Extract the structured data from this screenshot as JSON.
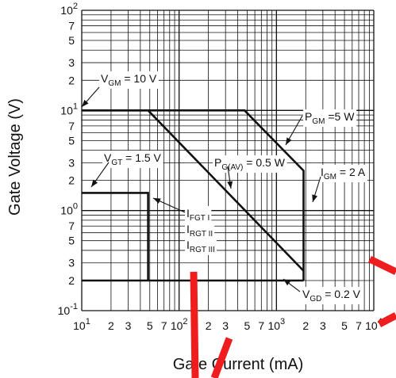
{
  "chart_data": {
    "type": "line",
    "x_scale": "log",
    "y_scale": "log",
    "xlim": [
      10,
      10000
    ],
    "ylim": [
      0.1,
      100
    ],
    "grid": true,
    "xlabel": "Gate Current  (mA)",
    "ylabel": "Gate Voltage  (V)",
    "x_tick_labels": [
      {
        "v": 10,
        "base": "10",
        "exp": "1"
      },
      {
        "v": 20,
        "base": "2"
      },
      {
        "v": 30,
        "base": "3"
      },
      {
        "v": 50,
        "base": "5"
      },
      {
        "v": 70,
        "base": "7"
      },
      {
        "v": 100,
        "base": "10",
        "exp": "2"
      },
      {
        "v": 200,
        "base": "2"
      },
      {
        "v": 300,
        "base": "3"
      },
      {
        "v": 500,
        "base": "5"
      },
      {
        "v": 700,
        "base": "7"
      },
      {
        "v": 1000,
        "base": "10",
        "exp": "3"
      },
      {
        "v": 2000,
        "base": "2"
      },
      {
        "v": 3000,
        "base": "3"
      },
      {
        "v": 5000,
        "base": "5"
      },
      {
        "v": 7000,
        "base": "7"
      },
      {
        "v": 10000,
        "base": "10",
        "exp": "4"
      }
    ],
    "y_tick_labels": [
      {
        "v": 100,
        "base": "10",
        "exp": "2"
      },
      {
        "v": 70,
        "base": "7"
      },
      {
        "v": 50,
        "base": "5"
      },
      {
        "v": 30,
        "base": "3"
      },
      {
        "v": 20,
        "base": "2"
      },
      {
        "v": 10,
        "base": "10",
        "exp": "1"
      },
      {
        "v": 7,
        "base": "7"
      },
      {
        "v": 5,
        "base": "5"
      },
      {
        "v": 3,
        "base": "3"
      },
      {
        "v": 2,
        "base": "2"
      },
      {
        "v": 1,
        "base": "10",
        "exp": "0"
      },
      {
        "v": 0.7,
        "base": "7"
      },
      {
        "v": 0.5,
        "base": "5"
      },
      {
        "v": 0.3,
        "base": "3"
      },
      {
        "v": 0.2,
        "base": "2"
      },
      {
        "v": 0.1,
        "base": "10",
        "exp": "-1"
      }
    ],
    "series": [
      {
        "points": [
          [
            10,
            10
          ],
          [
            48,
            10
          ],
          [
            1900,
            0.25
          ]
        ]
      },
      {
        "points": [
          [
            10,
            10
          ],
          [
            470,
            10
          ],
          [
            1900,
            2.5
          ],
          [
            1900,
            0.2
          ]
        ]
      },
      {
        "points": [
          [
            10,
            1.5
          ],
          [
            48,
            1.5
          ],
          [
            48,
            0.2
          ]
        ]
      },
      {
        "points": [
          [
            10,
            0.2
          ],
          [
            1900,
            0.2
          ]
        ]
      }
    ],
    "annotations": [
      {
        "id": "vgm",
        "main": "V",
        "sub": "GM",
        "tail": " = 10 V",
        "leader": [
          [
            125,
            110
          ],
          [
            103,
            135
          ]
        ]
      },
      {
        "id": "pgm",
        "main": "P",
        "sub": "GM",
        "tail": " =5 W",
        "leader": [
          [
            381,
            146
          ],
          [
            360,
            183
          ]
        ]
      },
      {
        "id": "vgt",
        "main": "V",
        "sub": "GT",
        "tail": " = 1.5 V",
        "leader": [
          [
            137,
            205
          ],
          [
            115,
            236
          ]
        ]
      },
      {
        "id": "pgav",
        "main": "P",
        "sub": "G(AV)",
        "tail": " = 0.5 W",
        "leader": [
          [
            287,
            210
          ],
          [
            291,
            238
          ]
        ]
      },
      {
        "id": "igm",
        "main": "I",
        "sub": "GM",
        "tail": " = 2 A",
        "leader": [
          [
            404,
            223
          ],
          [
            394,
            255
          ]
        ]
      },
      {
        "id": "ifgt",
        "lines": [
          {
            "main": "I",
            "sub": "FGT I"
          },
          {
            "main": "I",
            "sub": "RGT II"
          },
          {
            "main": "I",
            "sub": "RGT III"
          }
        ],
        "leader": [
          [
            233,
            268
          ],
          [
            193,
            250
          ]
        ]
      },
      {
        "id": "vgd",
        "main": "V",
        "sub": "GD",
        "tail": " = 0.2 V",
        "leader": [
          [
            378,
            368
          ],
          [
            357,
            352
          ]
        ]
      }
    ]
  }
}
